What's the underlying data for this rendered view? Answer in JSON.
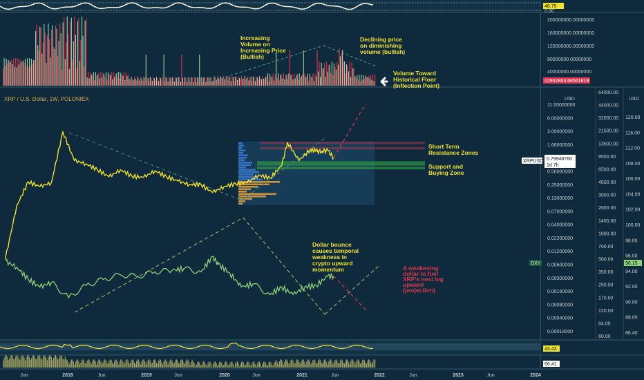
{
  "header": {
    "symbol_title": "XRP / U.S. Dollar, 1W, POLONIEX"
  },
  "colors": {
    "background": "#0e2a3c",
    "xrp_line": "#f2e230",
    "dxy_line": "#8fd17a",
    "annotation_yellow": "#f2e230",
    "annotation_red": "#e0364f",
    "resistance_zone": "#c0394b",
    "support_zone": "#2ea043",
    "volume_up": "#9fd4a8",
    "volume_down": "#e0364f"
  },
  "oscillator_top": {
    "value_label": "48.75",
    "level_label": "0.00"
  },
  "volume_panel": {
    "current_label": "12932863.68561819",
    "axis_labels": [
      "200000000.00000000",
      "160000000.00000000",
      "120000000.00000000",
      "80000000.00000000",
      "40000000.00000000"
    ]
  },
  "price_axis": {
    "unit": "USD",
    "xrp_labels": [
      "11.00000000",
      "6.00000000",
      "3.00000000",
      "1.60000000",
      "0.90000000",
      "0.50000000",
      "0.25000000",
      "0.13000000",
      "0.07000000",
      "0.04000000",
      "0.02200000",
      "0.01200000",
      "0.00600000",
      "0.00300000",
      "0.00160000",
      "0.00080000",
      "0.00040000",
      "0.00018000"
    ],
    "second_labels": [
      "64000.00",
      "44000.00",
      "32000.00",
      "21500.00",
      "13500.00",
      "9500.00",
      "6500.00",
      "4500.00",
      "3000.00",
      "2000.00",
      "1400.00",
      "1000.00",
      "700.00",
      "500.00",
      "350.00",
      "250.00",
      "170.00",
      "120.00",
      "84.00",
      "60.00"
    ],
    "dxy_unit": "USD",
    "dxy_labels": [
      "120.00",
      "116.00",
      "112.00",
      "108.00",
      "106.00",
      "104.00",
      "102.00",
      "100.00",
      "98.00",
      "96.00",
      "94.00",
      "92.00",
      "90.00",
      "88.00",
      "86.40"
    ]
  },
  "badges": {
    "xrp_symbol": "XRPUSD",
    "xrp_price": "0.79948760",
    "xrp_countdown": "1d 7h",
    "dxy_symbol": "DXY",
    "dxy_price": "96.15",
    "rsi_value": "43.43",
    "bottom_value": "66.41"
  },
  "annotations": {
    "increasing_volume": [
      "Increasing",
      "Volume on",
      "Increasing Price",
      "(Bullish)"
    ],
    "declining_price": [
      "Declining price",
      "on diminishing",
      "volume (bullish)"
    ],
    "volume_floor": [
      "Volume Toward",
      "Historical Floor",
      "(Inflection Point)"
    ],
    "resistance": [
      "Short Term",
      "Resistance Zones"
    ],
    "support": [
      "Support and",
      "Buying Zone"
    ],
    "dollar_bounce": [
      "Dollar bounce",
      "causes temporal",
      "weakness in",
      "crypto upward",
      "momentum"
    ],
    "weakening_dollar": [
      "A weakening",
      "dollar to fuel",
      "XRP's next leg",
      "upward",
      "(projection)"
    ]
  },
  "time_axis": {
    "labels": [
      "Jun",
      "2018",
      "Jun",
      "2019",
      "Jun",
      "2020",
      "Jun",
      "2021",
      "Jun",
      "2022",
      "Jun",
      "2023",
      "Jun",
      "2024"
    ]
  },
  "chart_data": [
    {
      "type": "line",
      "title": "XRP / U.S. Dollar, 1W, POLONIEX",
      "ylabel": "USD",
      "log_scale": true,
      "series": [
        {
          "name": "XRPUSD",
          "x": [
            "2017-03",
            "2017-05",
            "2017-07",
            "2017-09",
            "2017-11",
            "2018-01",
            "2018-03",
            "2018-05",
            "2018-07",
            "2018-09",
            "2018-11",
            "2019-01",
            "2019-03",
            "2019-05",
            "2019-07",
            "2019-09",
            "2019-11",
            "2020-01",
            "2020-03",
            "2020-05",
            "2020-07",
            "2020-09",
            "2020-11",
            "2021-01",
            "2021-03",
            "2021-04",
            "2021-06",
            "2021-08",
            "2021-09",
            "2021-10",
            "2021-11",
            "2021-12"
          ],
          "values": [
            0.006,
            0.08,
            0.25,
            0.2,
            0.24,
            2.8,
            0.7,
            0.6,
            0.45,
            0.32,
            0.45,
            0.33,
            0.31,
            0.43,
            0.32,
            0.26,
            0.22,
            0.22,
            0.15,
            0.2,
            0.23,
            0.24,
            0.35,
            0.3,
            0.55,
            1.7,
            0.7,
            1.2,
            1.1,
            1.1,
            1.15,
            0.8
          ]
        },
        {
          "name": "DXY",
          "x": [
            "2017-03",
            "2017-05",
            "2017-07",
            "2017-09",
            "2017-11",
            "2018-02",
            "2018-05",
            "2018-08",
            "2018-11",
            "2019-02",
            "2019-05",
            "2019-08",
            "2019-10",
            "2020-01",
            "2020-03",
            "2020-04",
            "2020-06",
            "2020-08",
            "2020-10",
            "2021-01",
            "2021-03",
            "2021-05",
            "2021-07",
            "2021-09",
            "2021-11",
            "2021-12"
          ],
          "values": [
            101.0,
            99.0,
            95.0,
            92.5,
            94.0,
            89.0,
            93.0,
            95.0,
            96.5,
            96.0,
            97.5,
            98.0,
            98.5,
            97.5,
            102.5,
            100.0,
            97.0,
            92.5,
            93.5,
            90.0,
            92.5,
            90.0,
            92.5,
            93.0,
            96.0,
            96.15
          ]
        }
      ],
      "projections": [
        {
          "name": "XRP projection",
          "x": [
            "2021-12",
            "2022-05"
          ],
          "values": [
            0.8,
            11.0
          ]
        },
        {
          "name": "DXY projection",
          "x": [
            "2021-12",
            "2022-05"
          ],
          "values": [
            96.15,
            85.0
          ]
        }
      ],
      "zones": [
        {
          "name": "Short Term Resistance Zones",
          "ranges": [
            [
              1.55,
              1.75
            ],
            [
              1.2,
              1.35
            ]
          ]
        },
        {
          "name": "Support and Buying Zone",
          "ranges": [
            [
              0.55,
              0.68
            ],
            [
              0.46,
              0.52
            ]
          ]
        }
      ]
    },
    {
      "type": "bar",
      "ylabel": "Volume",
      "categories": [
        "2017",
        "2018",
        "2019",
        "2020",
        "2021"
      ],
      "values": [
        90000000,
        150000000,
        30000000,
        45000000,
        110000000
      ],
      "last_value": 12932863.68561819
    }
  ]
}
